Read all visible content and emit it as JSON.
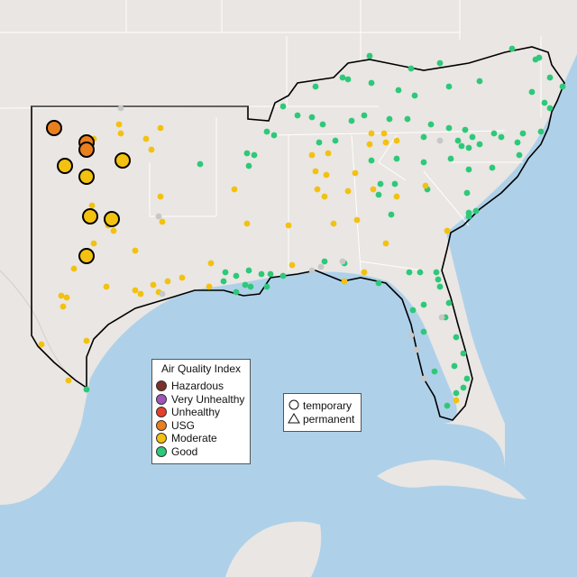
{
  "legend": {
    "title": "Air Quality Index",
    "categories": [
      {
        "label": "Hazardous",
        "color": "#7e2f2a"
      },
      {
        "label": "Very Unhealthy",
        "color": "#9f56b8"
      },
      {
        "label": "Unhealthy",
        "color": "#e5402b"
      },
      {
        "label": "USG",
        "color": "#ea7f1e"
      },
      {
        "label": "Moderate",
        "color": "#f3c10f"
      },
      {
        "label": "Good",
        "color": "#2ec879"
      }
    ]
  },
  "shape_legend": {
    "temporary": "temporary",
    "permanent": "permanent"
  },
  "colors": {
    "land": "#e9e6e3",
    "water": "#aed1e9",
    "unknown_monitor": "#c7c7c7"
  }
}
